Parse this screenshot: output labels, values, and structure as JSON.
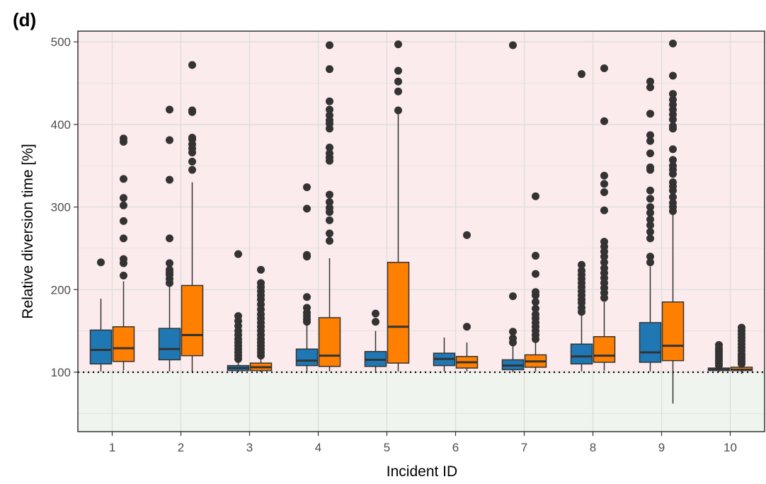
{
  "panel_label": "(d)",
  "colors": {
    "series_a": "#1f78b4",
    "series_b": "#ff7f00",
    "outlier": "#333333",
    "above_bg": "#fbebec",
    "below_bg": "#eff5ee",
    "grid": "#dedede",
    "reference_line": "#000000"
  },
  "chart_data": {
    "type": "boxplot",
    "xlabel": "Incident ID",
    "ylabel": "Relative diversion time [%]",
    "categories": [
      "1",
      "2",
      "3",
      "4",
      "5",
      "6",
      "7",
      "8",
      "9",
      "10"
    ],
    "ylim": [
      28,
      513
    ],
    "yticks": [
      100,
      200,
      300,
      400,
      500
    ],
    "grid": true,
    "reference_line": {
      "y": 100,
      "style": "dotted"
    },
    "shaded_regions": [
      {
        "from": 100,
        "to": 513,
        "color": "#fbebec"
      },
      {
        "from": 28,
        "to": 100,
        "color": "#eff5ee"
      }
    ],
    "series": [
      {
        "color": "#1f78b4",
        "boxes": [
          {
            "min": 101,
            "q1": 110,
            "median": 127,
            "q3": 151,
            "max": 189,
            "outliers": [
              233
            ]
          },
          {
            "min": 101,
            "q1": 115,
            "median": 128,
            "q3": 153,
            "max": 205,
            "outliers": [
              208,
              213,
              218,
              221,
              224,
              232,
              262,
              333,
              381,
              418
            ]
          },
          {
            "min": 100,
            "q1": 102,
            "median": 105,
            "q3": 108,
            "max": 114,
            "outliers": [
              116,
              120,
              124,
              128,
              132,
              136,
              140,
              145,
              150,
              156,
              162,
              168,
              243
            ]
          },
          {
            "min": 101,
            "q1": 108,
            "median": 114,
            "q3": 128,
            "max": 158,
            "outliers": [
              161,
              164,
              168,
              172,
              178,
              191,
              240,
              242,
              298,
              324
            ]
          },
          {
            "min": 101,
            "q1": 107,
            "median": 115,
            "q3": 125,
            "max": 150,
            "outliers": [
              161,
              171
            ]
          },
          {
            "min": 101,
            "q1": 108,
            "median": 116,
            "q3": 123,
            "max": 142,
            "outliers": []
          },
          {
            "min": 100,
            "q1": 103,
            "median": 108,
            "q3": 115,
            "max": 133,
            "outliers": [
              136,
              141,
              149,
              192,
              496
            ]
          },
          {
            "min": 101,
            "q1": 110,
            "median": 119,
            "q3": 134,
            "max": 170,
            "outliers": [
              173,
              178,
              184,
              188,
              193,
              198,
              203,
              208,
              213,
              218,
              223,
              230,
              461
            ]
          },
          {
            "min": 101,
            "q1": 112,
            "median": 124,
            "q3": 160,
            "max": 228,
            "outliers": [
              233,
              240,
              262,
              270,
              278,
              285,
              293,
              300,
              310,
              320,
              345,
              348,
              365,
              380,
              387,
              413,
              445,
              452
            ]
          },
          {
            "min": 100,
            "q1": 102,
            "median": 103,
            "q3": 105,
            "max": 106,
            "outliers": [
              108,
              111,
              114,
              117,
              120,
              123,
              126,
              129,
              133
            ]
          }
        ]
      },
      {
        "color": "#ff7f00",
        "boxes": [
          {
            "min": 102,
            "q1": 113,
            "median": 129,
            "q3": 155,
            "max": 210,
            "outliers": [
              217,
              232,
              237,
              262,
              283,
              302,
              311,
              334,
              379,
              383
            ]
          },
          {
            "min": 100,
            "q1": 120,
            "median": 145,
            "q3": 205,
            "max": 330,
            "outliers": [
              345,
              355,
              366,
              371,
              376,
              382,
              384,
              415,
              417,
              472
            ]
          },
          {
            "min": 100,
            "q1": 102,
            "median": 106,
            "q3": 111,
            "max": 117,
            "outliers": [
              120,
              124,
              128,
              132,
              136,
              140,
              145,
              150,
              155,
              160,
              165,
              170,
              176,
              182,
              188,
              193,
              198,
              203,
              208,
              224
            ]
          },
          {
            "min": 101,
            "q1": 107,
            "median": 120,
            "q3": 166,
            "max": 238,
            "outliers": [
              259,
              268,
              284,
              294,
              299,
              306,
              315,
              356,
              360,
              365,
              372,
              395,
              401,
              405,
              411,
              418,
              428,
              467,
              496
            ]
          },
          {
            "min": 101,
            "q1": 111,
            "median": 155,
            "q3": 233,
            "max": 417,
            "outliers": [
              417,
              440,
              452,
              465,
              497
            ]
          },
          {
            "min": 101,
            "q1": 105,
            "median": 112,
            "q3": 119,
            "max": 136,
            "outliers": [
              155,
              266
            ]
          },
          {
            "min": 101,
            "q1": 106,
            "median": 113,
            "q3": 121,
            "max": 138,
            "outliers": [
              140,
              145,
              150,
              155,
              160,
              165,
              170,
              177,
              185,
              193,
              197,
              219,
              241,
              313
            ]
          },
          {
            "min": 102,
            "q1": 112,
            "median": 120,
            "q3": 143,
            "max": 185,
            "outliers": [
              190,
              196,
              202,
              208,
              214,
              220,
              226,
              233,
              240,
              246,
              252,
              258,
              296,
              318,
              328,
              338,
              404,
              468
            ]
          },
          {
            "min": 62,
            "q1": 114,
            "median": 132,
            "q3": 185,
            "max": 292,
            "outliers": [
              295,
              300,
              305,
              312,
              320,
              325,
              330,
              340,
              345,
              350,
              357,
              370,
              395,
              398,
              406,
              412,
              418,
              424,
              430,
              437,
              459,
              498
            ]
          },
          {
            "min": 98,
            "q1": 102,
            "median": 103,
            "q3": 106,
            "max": 108,
            "outliers": [
              110,
              113,
              116,
              119,
              122,
              126,
              130,
              134,
              138,
              142,
              146,
              150,
              154
            ]
          }
        ]
      }
    ]
  }
}
